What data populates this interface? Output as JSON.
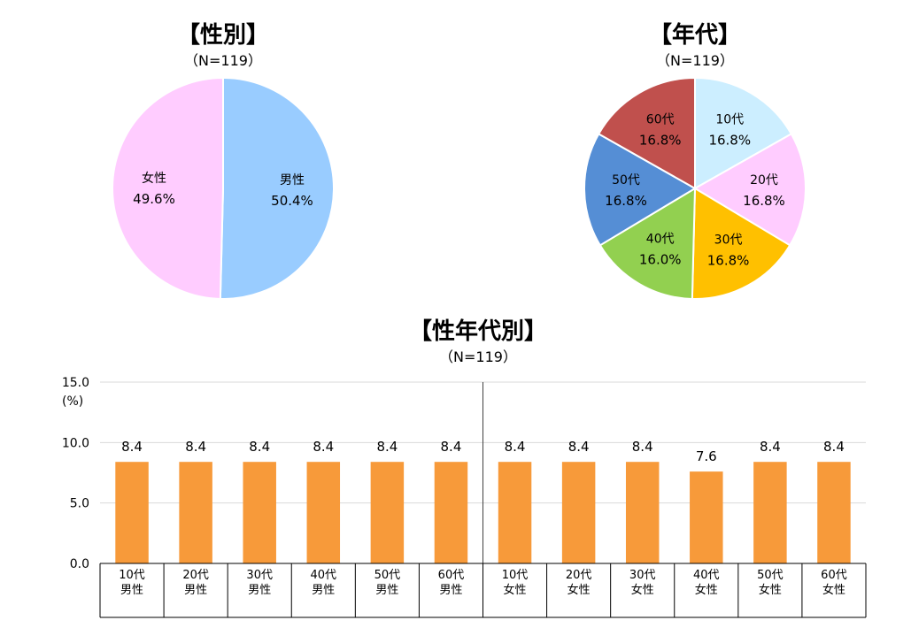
{
  "chart_data": [
    {
      "type": "pie",
      "title": "【性別】",
      "subtitle": "（N=119）",
      "slices": [
        {
          "label": "男性",
          "value": 50.4,
          "display": "50.4%",
          "color": "#99ccff"
        },
        {
          "label": "女性",
          "value": 49.6,
          "display": "49.6%",
          "color": "#ffccff"
        }
      ]
    },
    {
      "type": "pie",
      "title": "【年代】",
      "subtitle": "（N=119）",
      "slices": [
        {
          "label": "10代",
          "value": 16.8,
          "display": "16.8%",
          "color": "#cceeff"
        },
        {
          "label": "20代",
          "value": 16.8,
          "display": "16.8%",
          "color": "#ffccff"
        },
        {
          "label": "30代",
          "value": 16.8,
          "display": "16.8%",
          "color": "#ffc000"
        },
        {
          "label": "40代",
          "value": 16.0,
          "display": "16.0%",
          "color": "#92d050"
        },
        {
          "label": "50代",
          "value": 16.8,
          "display": "16.8%",
          "color": "#558ed5"
        },
        {
          "label": "60代",
          "value": 16.8,
          "display": "16.8%",
          "color": "#c0504d"
        }
      ]
    },
    {
      "type": "bar",
      "title": "【性年代別】",
      "subtitle": "（N=119）",
      "ylabel": "(%)",
      "ylim": [
        0,
        15
      ],
      "yticks": [
        "0.0",
        "5.0",
        "10.0",
        "15.0"
      ],
      "bar_color": "#f79a3a",
      "categories": [
        [
          "10代",
          "男性"
        ],
        [
          "20代",
          "男性"
        ],
        [
          "30代",
          "男性"
        ],
        [
          "40代",
          "男性"
        ],
        [
          "50代",
          "男性"
        ],
        [
          "60代",
          "男性"
        ],
        [
          "10代",
          "女性"
        ],
        [
          "20代",
          "女性"
        ],
        [
          "30代",
          "女性"
        ],
        [
          "40代",
          "女性"
        ],
        [
          "50代",
          "女性"
        ],
        [
          "60代",
          "女性"
        ]
      ],
      "values": [
        8.4,
        8.4,
        8.4,
        8.4,
        8.4,
        8.4,
        8.4,
        8.4,
        8.4,
        7.6,
        8.4,
        8.4
      ],
      "labels": [
        "8.4",
        "8.4",
        "8.4",
        "8.4",
        "8.4",
        "8.4",
        "8.4",
        "8.4",
        "8.4",
        "7.6",
        "8.4",
        "8.4"
      ],
      "grid": true
    }
  ]
}
